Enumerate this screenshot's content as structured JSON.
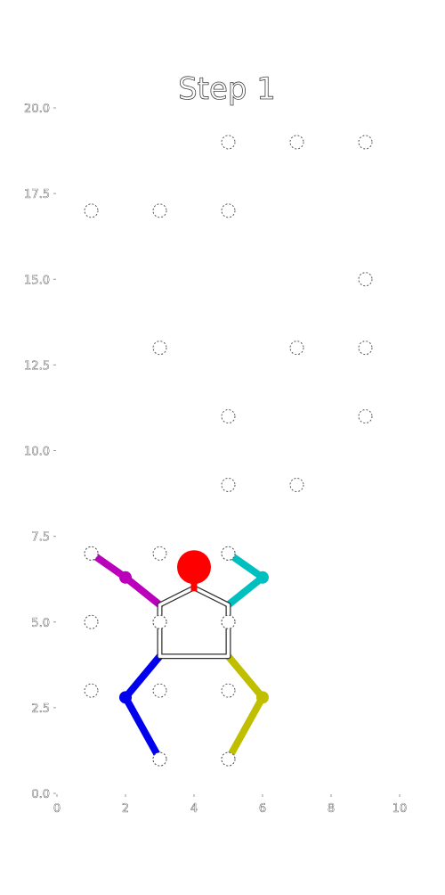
{
  "title": "Step 1",
  "chart_data": {
    "type": "scatter",
    "xlim": [
      0,
      10
    ],
    "ylim": [
      0,
      20
    ],
    "x_ticks": [
      0,
      2,
      4,
      6,
      8,
      10
    ],
    "y_ticks": [
      0.0,
      2.5,
      5.0,
      7.5,
      10.0,
      12.5,
      15.0,
      17.5,
      20.0
    ],
    "x_tick_labels": [
      "0",
      "2",
      "4",
      "6",
      "8",
      "10"
    ],
    "y_tick_labels": [
      "0.0",
      "2.5",
      "5.0",
      "7.5",
      "10.0",
      "12.5",
      "15.0",
      "17.5",
      "20.0"
    ],
    "holds": [
      [
        5,
        19
      ],
      [
        7,
        19
      ],
      [
        9,
        19
      ],
      [
        1,
        17
      ],
      [
        3,
        17
      ],
      [
        5,
        17
      ],
      [
        9,
        15
      ],
      [
        3,
        13
      ],
      [
        7,
        13
      ],
      [
        9,
        13
      ],
      [
        5,
        11
      ],
      [
        9,
        11
      ],
      [
        5,
        9
      ],
      [
        7,
        9
      ],
      [
        1,
        7
      ],
      [
        3,
        7
      ],
      [
        5,
        7
      ],
      [
        1,
        5
      ],
      [
        3,
        5
      ],
      [
        5,
        5
      ],
      [
        1,
        3
      ],
      [
        3,
        3
      ],
      [
        5,
        3
      ],
      [
        3,
        1
      ],
      [
        5,
        1
      ]
    ],
    "climber": {
      "head": {
        "x": 4,
        "y": 6.6,
        "color": "#ff0000"
      },
      "neck": {
        "x": 4,
        "y": 6.0
      },
      "shoulder_left": {
        "x": 3,
        "y": 5.5
      },
      "shoulder_right": {
        "x": 5,
        "y": 5.5
      },
      "hip_left": {
        "x": 3,
        "y": 4.0
      },
      "hip_right": {
        "x": 5,
        "y": 4.0
      },
      "left_arm": {
        "elbow": [
          2,
          6.3
        ],
        "hand": [
          1,
          7
        ],
        "color": "#bb00bb"
      },
      "right_arm": {
        "elbow": [
          6,
          6.3
        ],
        "hand": [
          5,
          7
        ],
        "color": "#00bfbf"
      },
      "left_leg": {
        "knee": [
          2,
          2.8
        ],
        "foot": [
          3,
          1
        ],
        "color": "#0000ee"
      },
      "right_leg": {
        "knee": [
          6,
          2.8
        ],
        "foot": [
          5,
          1
        ],
        "color": "#bfbf00"
      }
    }
  }
}
